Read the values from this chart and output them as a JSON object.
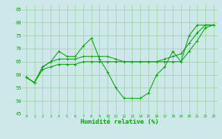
{
  "xlabel": "Humidité relative (%)",
  "x": [
    0,
    1,
    2,
    3,
    4,
    5,
    6,
    7,
    8,
    9,
    10,
    11,
    12,
    13,
    14,
    15,
    16,
    17,
    18,
    19,
    20,
    21,
    22,
    23
  ],
  "line1": [
    59,
    57,
    63,
    65,
    69,
    67,
    67,
    71,
    74,
    66,
    61,
    55,
    51,
    51,
    51,
    53,
    60,
    63,
    69,
    65,
    75,
    79,
    79,
    79
  ],
  "line2": [
    59,
    57,
    63,
    65,
    66,
    66,
    66,
    67,
    67,
    67,
    67,
    66,
    65,
    65,
    65,
    65,
    65,
    66,
    67,
    68,
    72,
    76,
    79,
    79
  ],
  "line3": [
    59,
    57,
    62,
    63,
    64,
    64,
    64,
    65,
    65,
    65,
    65,
    65,
    65,
    65,
    65,
    65,
    65,
    65,
    65,
    65,
    69,
    73,
    78,
    79
  ],
  "bg_color": "#cce8e8",
  "line_color": "#00aa00",
  "grid_color": "#99cc99",
  "ylim": [
    45,
    87
  ],
  "yticks": [
    45,
    50,
    55,
    60,
    65,
    70,
    75,
    80,
    85
  ],
  "xticks": [
    0,
    1,
    2,
    3,
    4,
    5,
    6,
    7,
    8,
    9,
    10,
    11,
    12,
    13,
    14,
    15,
    16,
    17,
    18,
    19,
    20,
    21,
    22,
    23
  ]
}
